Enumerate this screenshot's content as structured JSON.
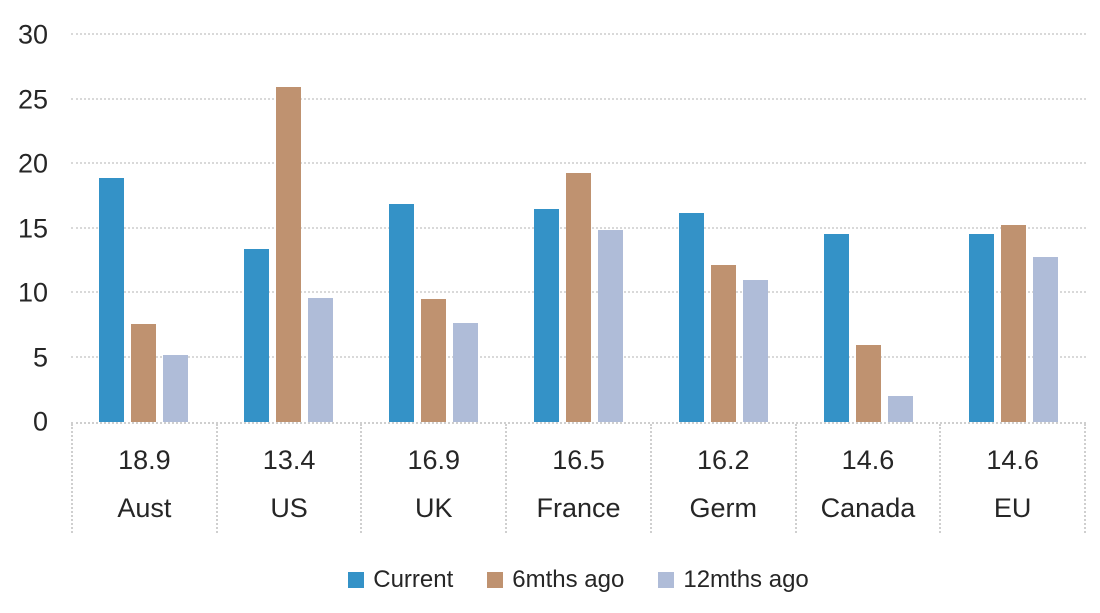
{
  "colors": {
    "current": "#3492C7",
    "six_months": "#BF9270",
    "twelve_months": "#AFBCD8",
    "gridline": "#D9D9D9",
    "table_border": "#CFCFCF",
    "text": "#262626"
  },
  "chart_data": {
    "type": "bar",
    "title": "",
    "categories": [
      "Aust",
      "US",
      "UK",
      "France",
      "Germ",
      "Canada",
      "EU"
    ],
    "series": [
      {
        "name": "Current",
        "color_key": "current",
        "values": [
          18.9,
          13.4,
          16.9,
          16.5,
          16.2,
          14.6,
          14.6
        ]
      },
      {
        "name": "6mths ago",
        "color_key": "six_months",
        "values": [
          7.6,
          26.0,
          9.5,
          19.3,
          12.2,
          6.0,
          15.3
        ]
      },
      {
        "name": "12mths ago",
        "color_key": "twelve_months",
        "values": [
          5.2,
          9.6,
          7.7,
          14.9,
          11.0,
          2.0,
          12.8
        ]
      }
    ],
    "data_table_row": [
      "18.9",
      "13.4",
      "16.9",
      "16.5",
      "16.2",
      "14.6",
      "14.6"
    ],
    "y_axis": {
      "min": 0,
      "max": 30,
      "tick_step": 5,
      "ticks": [
        0,
        5,
        10,
        15,
        20,
        25,
        30
      ]
    },
    "legend": {
      "position": "bottom",
      "entries": [
        "Current",
        "6mths ago",
        "12mths ago"
      ]
    },
    "grid": true,
    "gridline_style": "dotted"
  }
}
